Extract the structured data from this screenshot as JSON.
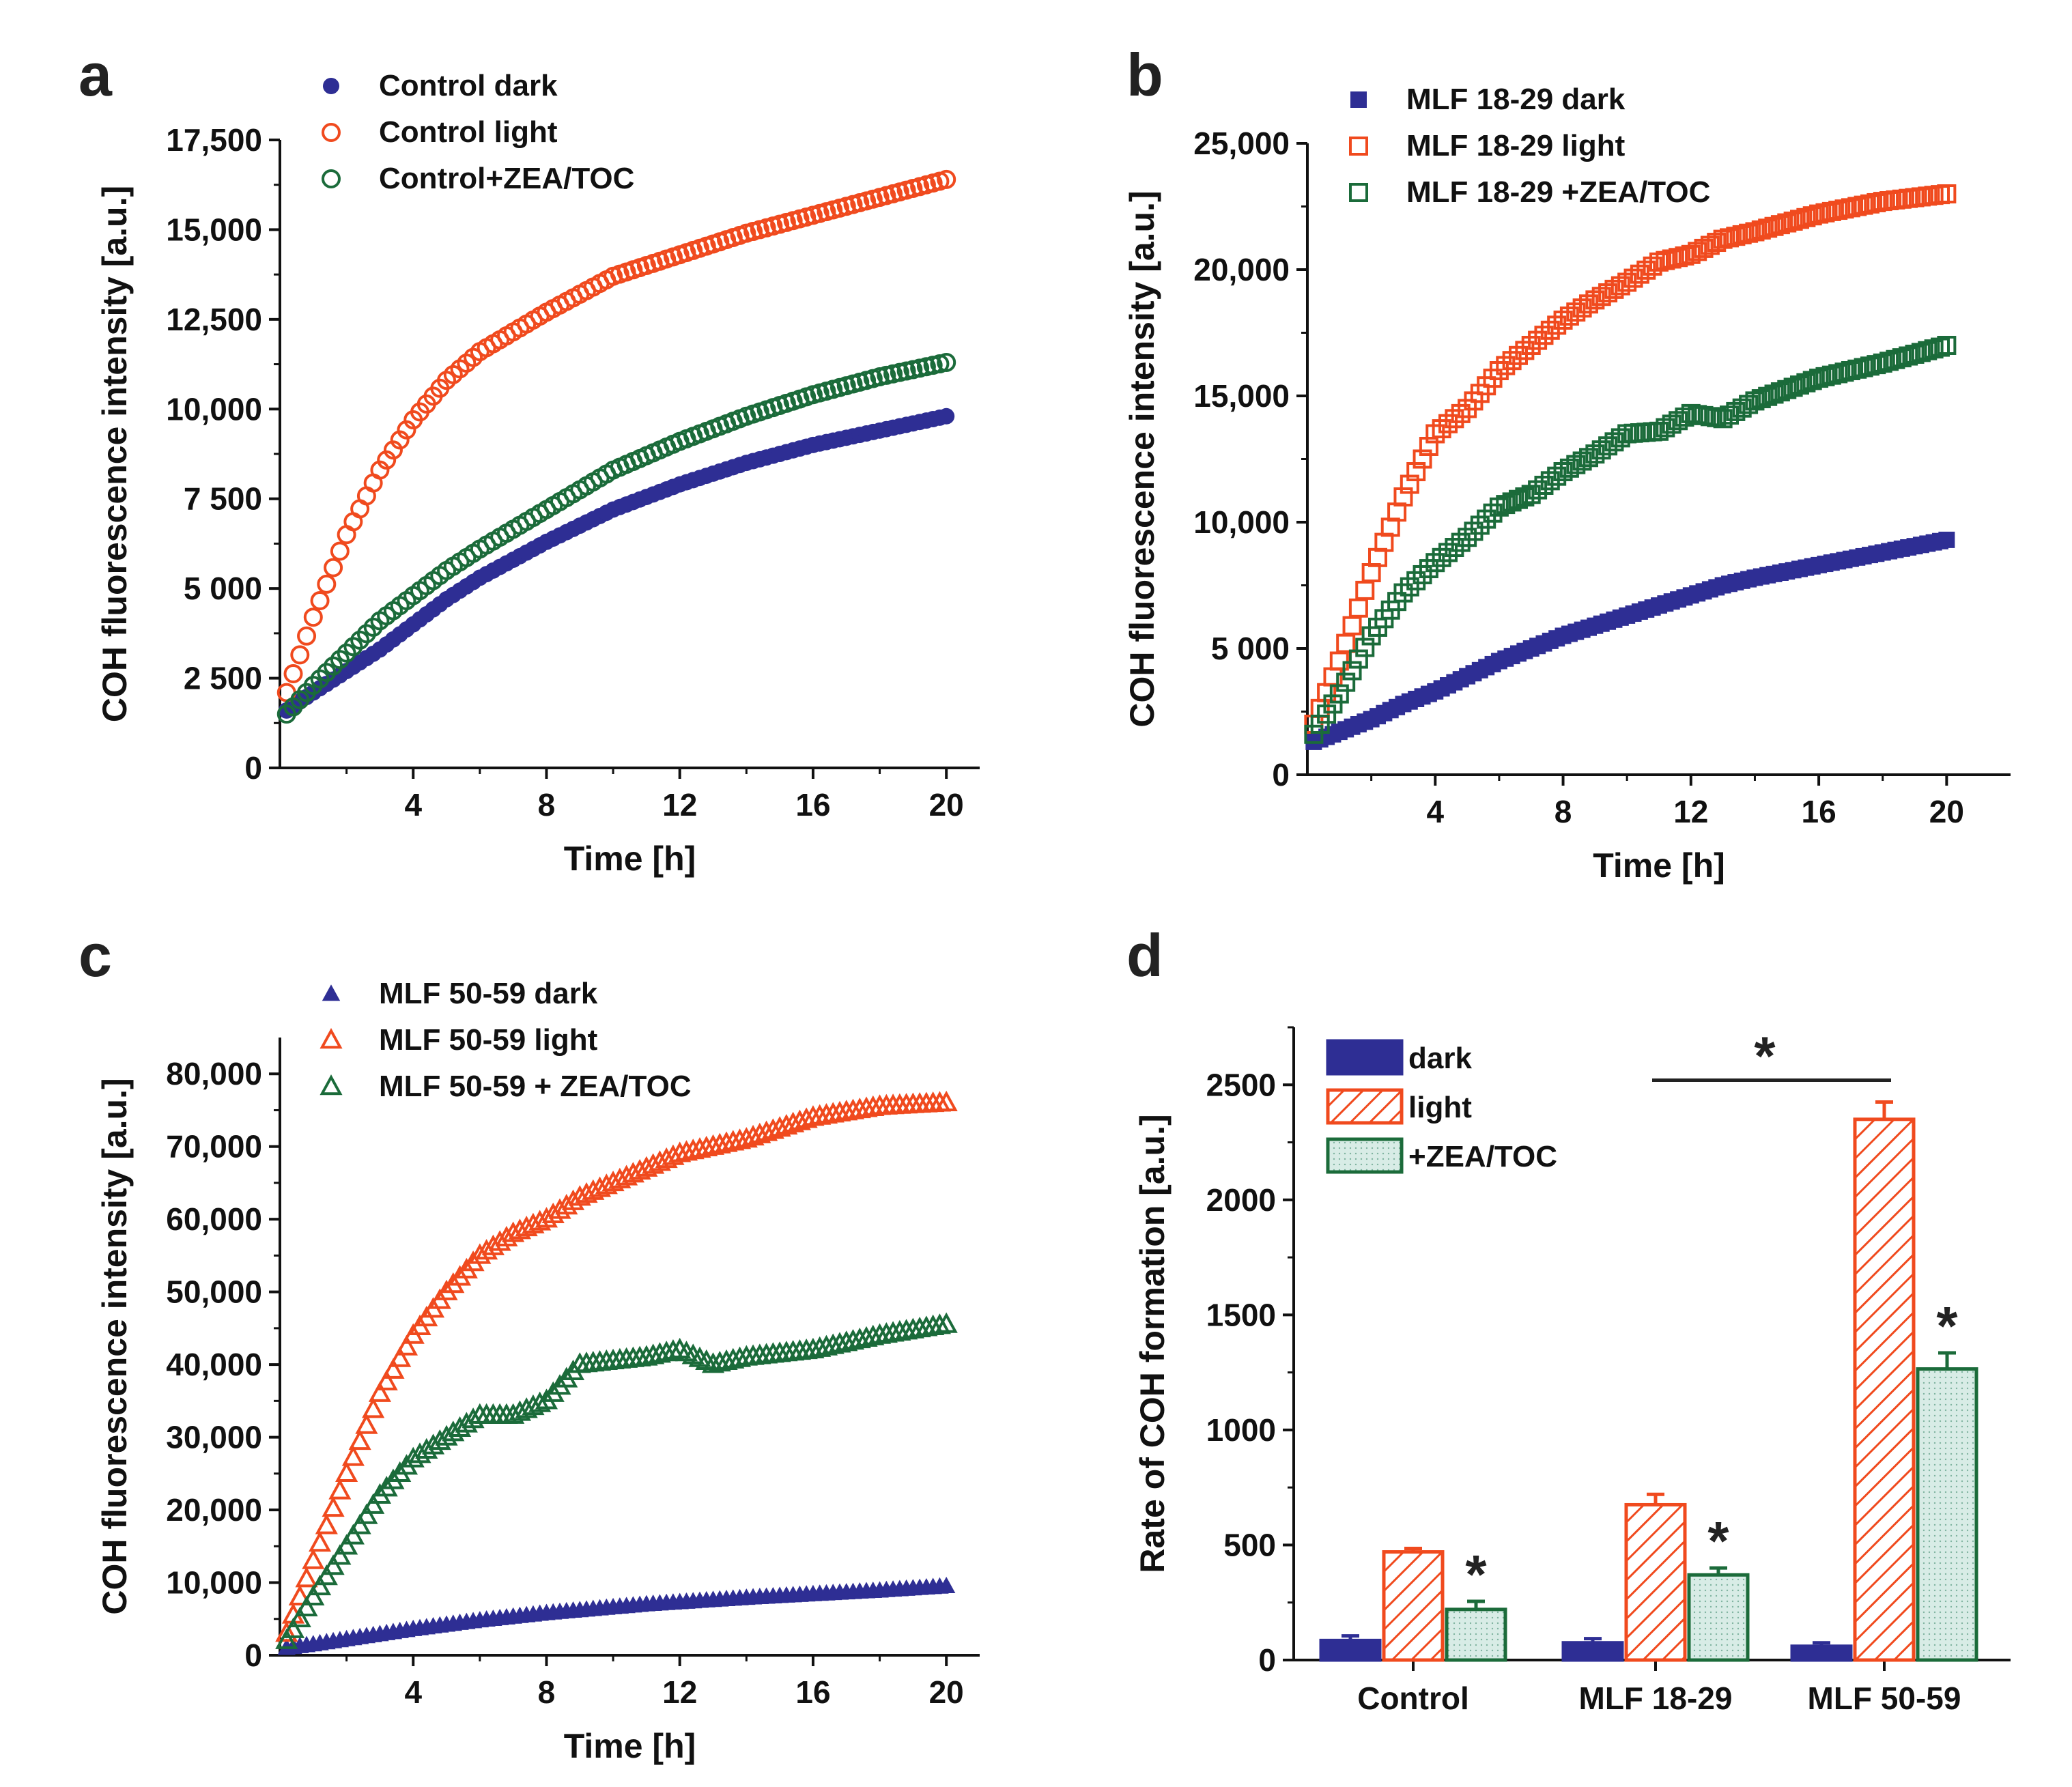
{
  "colors": {
    "dark": "#2e2e94",
    "light": "#f04a1e",
    "zea": "#1b6b3a",
    "axis": "#111111",
    "zea_fill": "#d8ece6"
  },
  "chart_data": [
    {
      "panel": "a",
      "type": "scatter",
      "xlabel": "Time [h]",
      "ylabel": "COH fluorescence intensity [a.u.]",
      "xlim": [
        0,
        21
      ],
      "ylim": [
        0,
        17500
      ],
      "xticks": [
        4,
        8,
        12,
        16,
        20
      ],
      "xtick_labels": [
        "4",
        "8",
        "12",
        "16",
        "20"
      ],
      "yticks": [
        0,
        2500,
        5000,
        7500,
        10000,
        12500,
        15000,
        17500
      ],
      "ytick_labels": [
        "0",
        "2 500",
        "5 000",
        "7 500",
        "10,000",
        "12,500",
        "15,000",
        "17,500"
      ],
      "x": [
        0.2,
        1,
        2,
        3,
        4,
        5,
        6,
        8,
        10,
        12,
        14,
        16,
        18,
        20
      ],
      "series": [
        {
          "name": "Control dark",
          "marker": "filled-circle",
          "values": [
            1600,
            2100,
            2700,
            3300,
            4000,
            4700,
            5300,
            6300,
            7200,
            7900,
            8500,
            9000,
            9400,
            9800
          ]
        },
        {
          "name": "Control light",
          "marker": "open-circle",
          "values": [
            2100,
            4200,
            6500,
            8300,
            9700,
            10800,
            11600,
            12700,
            13700,
            14300,
            14900,
            15400,
            15900,
            16400
          ]
        },
        {
          "name": "Control+ZEA/TOC",
          "marker": "open-circle",
          "values": [
            1500,
            2300,
            3200,
            4100,
            4800,
            5500,
            6100,
            7200,
            8300,
            9100,
            9800,
            10400,
            10900,
            11300
          ]
        }
      ]
    },
    {
      "panel": "b",
      "type": "scatter",
      "xlabel": "Time [h]",
      "ylabel": "COH fluorescence intensity [a.u.]",
      "xlim": [
        0,
        22
      ],
      "ylim": [
        0,
        25000
      ],
      "xticks": [
        4,
        8,
        12,
        16,
        20
      ],
      "xtick_labels": [
        "4",
        "8",
        "12",
        "16",
        "20"
      ],
      "yticks": [
        0,
        5000,
        10000,
        15000,
        20000,
        25000
      ],
      "ytick_labels": [
        "0",
        "5 000",
        "10,000",
        "15,000",
        "20,000",
        "25,000"
      ],
      "x": [
        0.2,
        1,
        2,
        3,
        4,
        5,
        6,
        7,
        8,
        9,
        10,
        11,
        12,
        13,
        14,
        16,
        18,
        20
      ],
      "series": [
        {
          "name": "MLF 18-29 dark",
          "marker": "filled-square",
          "values": [
            1300,
            1700,
            2200,
            2800,
            3300,
            3900,
            4500,
            5000,
            5500,
            5900,
            6300,
            6700,
            7100,
            7500,
            7800,
            8300,
            8800,
            9300
          ]
        },
        {
          "name": "MLF 18-29 light",
          "marker": "open-square",
          "values": [
            2000,
            4500,
            8000,
            11000,
            13500,
            14500,
            16000,
            17000,
            18000,
            18800,
            19500,
            20300,
            20600,
            21200,
            21500,
            22200,
            22700,
            23000
          ]
        },
        {
          "name": "MLF 18-29 +ZEA/TOC",
          "marker": "open-square",
          "values": [
            1600,
            3200,
            5500,
            7200,
            8400,
            9400,
            10600,
            11100,
            12000,
            12700,
            13500,
            13600,
            14300,
            14100,
            14800,
            15700,
            16300,
            17000
          ]
        }
      ]
    },
    {
      "panel": "c",
      "type": "scatter",
      "xlabel": "Time [h]",
      "ylabel": "COH fluorescence intensity [a.u.]",
      "xlim": [
        0,
        21
      ],
      "ylim": [
        0,
        85000
      ],
      "xticks": [
        4,
        8,
        12,
        16,
        20
      ],
      "xtick_labels": [
        "4",
        "8",
        "12",
        "16",
        "20"
      ],
      "yticks": [
        0,
        10000,
        20000,
        30000,
        40000,
        50000,
        60000,
        70000,
        80000
      ],
      "ytick_labels": [
        "0",
        "10,000",
        "20,000",
        "30,000",
        "40,000",
        "50,000",
        "60,000",
        "70,000",
        "80,000"
      ],
      "x": [
        0.2,
        1,
        2,
        3,
        4,
        5,
        6,
        7,
        8,
        9,
        10,
        11,
        12,
        13,
        14,
        16,
        18,
        20
      ],
      "series": [
        {
          "name": "MLF 50-59 dark",
          "marker": "filled-triangle",
          "values": [
            1000,
            1500,
            2200,
            2900,
            3600,
            4200,
            4800,
            5300,
            5800,
            6200,
            6600,
            7000,
            7300,
            7600,
            7900,
            8400,
            8900,
            9500
          ]
        },
        {
          "name": "MLF 50-59  light",
          "marker": "open-triangle",
          "values": [
            3000,
            13000,
            25000,
            36000,
            44000,
            50000,
            55000,
            58000,
            60000,
            63000,
            65000,
            67000,
            69000,
            70000,
            71000,
            74000,
            75500,
            76000
          ]
        },
        {
          "name": "MLF 50-59 + ZEA/TOC",
          "marker": "open-triangle",
          "values": [
            2000,
            8000,
            15000,
            22000,
            27000,
            30000,
            33000,
            33000,
            35000,
            40000,
            40500,
            41000,
            42000,
            40000,
            41000,
            42000,
            44000,
            45500
          ]
        }
      ]
    },
    {
      "panel": "d",
      "type": "bar",
      "ylabel": "Rate of COH formation [a.u.]",
      "ylim": [
        0,
        2750
      ],
      "yticks": [
        0,
        500,
        1000,
        1500,
        2000,
        2500
      ],
      "ytick_labels": [
        "0",
        "500",
        "1000",
        "1500",
        "2000",
        "2500"
      ],
      "categories": [
        "Control",
        "MLF 18-29",
        "MLF 50-59"
      ],
      "series": [
        {
          "name": "dark",
          "values": [
            85,
            75,
            60
          ],
          "errors": [
            20,
            18,
            15
          ]
        },
        {
          "name": "light",
          "values": [
            470,
            675,
            2350
          ],
          "errors": [
            15,
            45,
            75
          ]
        },
        {
          "name": "+ZEA/TOC",
          "values": [
            220,
            370,
            1265
          ],
          "errors": [
            35,
            30,
            70
          ]
        }
      ],
      "significance": {
        "bar_label": "*",
        "star": "*"
      }
    }
  ]
}
